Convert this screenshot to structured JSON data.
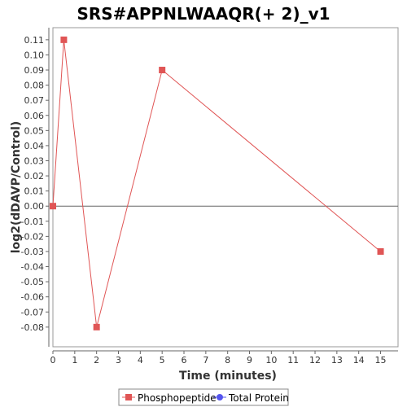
{
  "chart_data": {
    "type": "line",
    "title": "SRS#APPNLWAAQR(+ 2)_v1",
    "xlabel": "Time (minutes)",
    "ylabel": "log2(dDAVP/Control)",
    "xlim": [
      0,
      15.8
    ],
    "ylim": [
      -0.093,
      0.118
    ],
    "x_ticks": [
      "0",
      "1",
      "2",
      "3",
      "4",
      "5",
      "6",
      "7",
      "8",
      "9",
      "10",
      "11",
      "12",
      "13",
      "14",
      "15"
    ],
    "y_ticks": [
      "0.11",
      "0.10",
      "0.09",
      "0.08",
      "0.07",
      "0.06",
      "0.05",
      "0.04",
      "0.03",
      "0.02",
      "0.01",
      "0.00",
      "-0.01",
      "-0.02",
      "-0.03",
      "-0.04",
      "-0.05",
      "-0.06",
      "-0.07",
      "-0.08"
    ],
    "grid": false,
    "zero_line": true,
    "legend_position": "bottom",
    "series": [
      {
        "name": "Phosphopeptide",
        "color": "#e05555",
        "marker": "square",
        "points": [
          {
            "x": 0,
            "y": 0.0
          },
          {
            "x": 0.5,
            "y": 0.11
          },
          {
            "x": 2,
            "y": -0.08
          },
          {
            "x": 5,
            "y": 0.09
          },
          {
            "x": 15,
            "y": -0.03
          }
        ]
      },
      {
        "name": "Total Protein",
        "color": "#5555ee",
        "marker": "circle",
        "points": []
      }
    ]
  }
}
